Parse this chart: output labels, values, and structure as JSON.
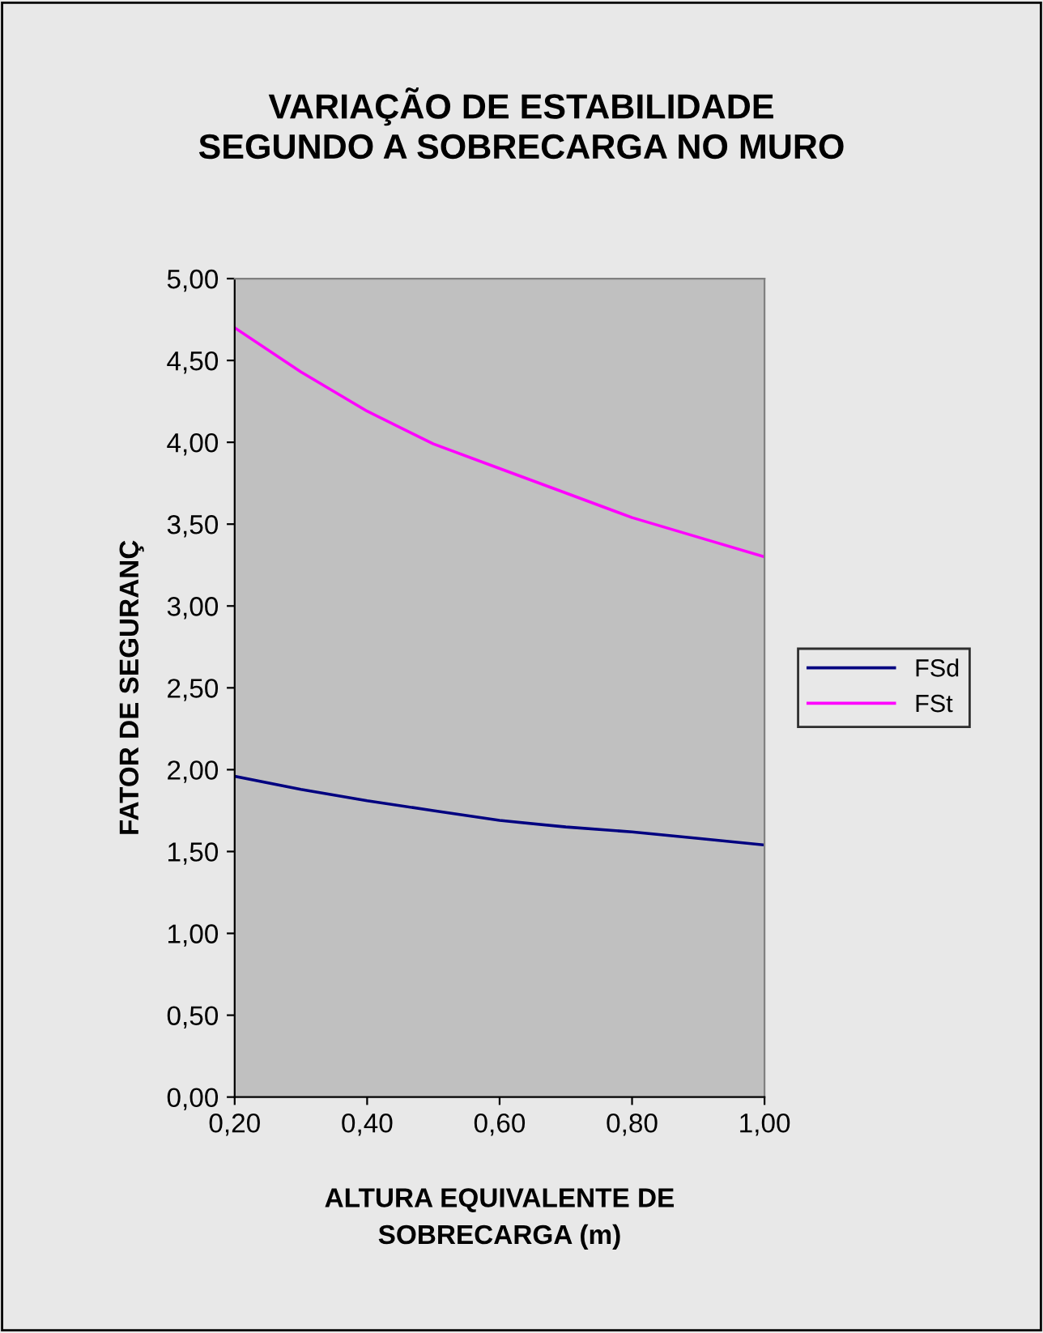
{
  "chart_data": {
    "type": "line",
    "title": "VARIAÇÃO DE ESTABILIDADE\nSEGUNDO A SOBRECARGA NO MURO",
    "xlabel": "ALTURA EQUIVALENTE DE\nSOBRECARGA (m)",
    "ylabel": "FATOR DE SEGURANÇ",
    "x": [
      0.2,
      0.3,
      0.4,
      0.5,
      0.6,
      0.7,
      0.8,
      0.9,
      1.0
    ],
    "series": [
      {
        "name": "FSd",
        "color": "#000080",
        "values": [
          1.96,
          1.88,
          1.81,
          1.75,
          1.69,
          1.65,
          1.62,
          1.58,
          1.54
        ]
      },
      {
        "name": "FSt",
        "color": "#ff00ff",
        "values": [
          4.7,
          4.43,
          4.19,
          3.99,
          3.84,
          3.69,
          3.54,
          3.42,
          3.3
        ]
      }
    ],
    "xlim": [
      0.2,
      1.0
    ],
    "xticks": [
      {
        "value": 0.2,
        "label": "0,20"
      },
      {
        "value": 0.4,
        "label": "0,40"
      },
      {
        "value": 0.6,
        "label": "0,60"
      },
      {
        "value": 0.8,
        "label": "0,80"
      },
      {
        "value": 1.0,
        "label": "1,00"
      }
    ],
    "ylim": [
      0,
      5
    ],
    "yticks": [
      {
        "value": 0,
        "label": "0,00"
      },
      {
        "value": 0.5,
        "label": "0,50"
      },
      {
        "value": 1,
        "label": "1,00"
      },
      {
        "value": 1.5,
        "label": "1,50"
      },
      {
        "value": 2,
        "label": "2,00"
      },
      {
        "value": 2.5,
        "label": "2,50"
      },
      {
        "value": 3,
        "label": "3,00"
      },
      {
        "value": 3.5,
        "label": "3,50"
      },
      {
        "value": 4,
        "label": "4,00"
      },
      {
        "value": 4.5,
        "label": "4,50"
      },
      {
        "value": 5,
        "label": "5,00"
      }
    ],
    "grid": false,
    "legend": "right",
    "marker": "none",
    "line_style": "solid"
  }
}
